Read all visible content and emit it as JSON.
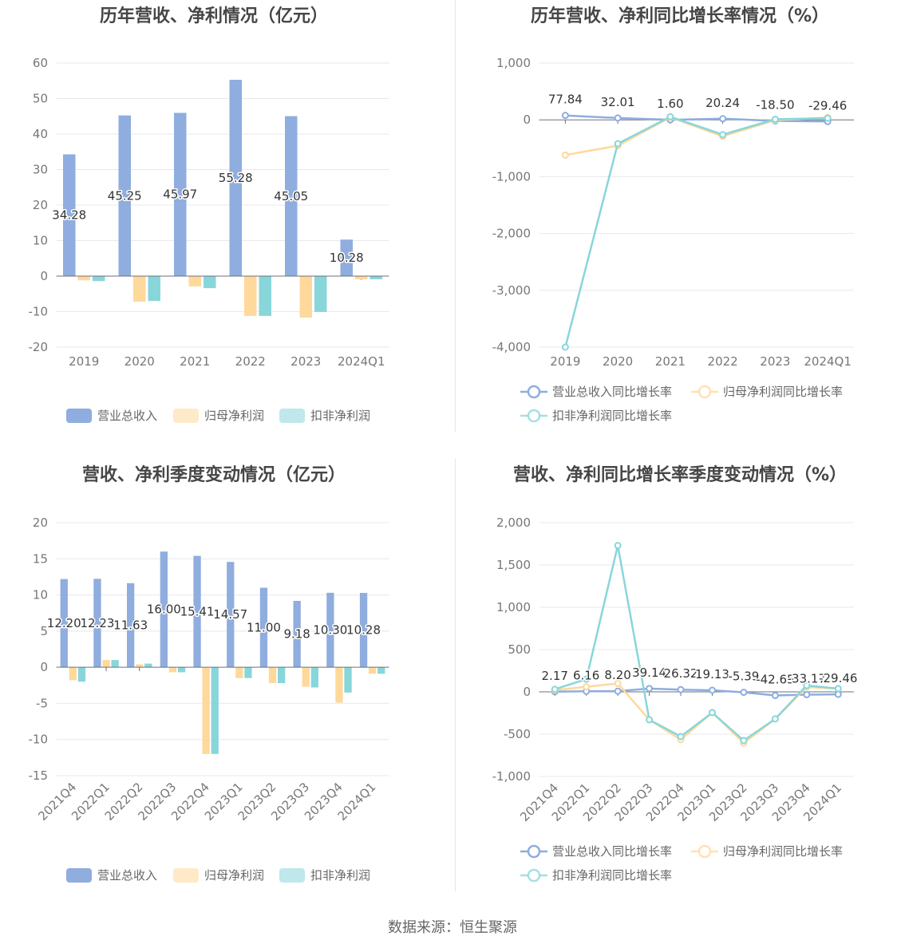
{
  "colors": {
    "revenue": "#8fadde",
    "net_profit": "#ffd89b",
    "deducted_net_profit": "#88d6da"
  },
  "chart_data": [
    {
      "type": "bar",
      "title": "历年营收、净利情况（亿元）",
      "categories": [
        "2019",
        "2020",
        "2021",
        "2022",
        "2023",
        "2024Q1"
      ],
      "ylim": [
        -20,
        60
      ],
      "ytick_labels": [
        "60",
        "50",
        "40",
        "30",
        "20",
        "10",
        "0",
        "-10",
        "-20"
      ],
      "grid": true,
      "legend_position": "bottom",
      "series": [
        {
          "name": "营业总收入",
          "values": [
            34.28,
            45.25,
            45.97,
            55.28,
            45.05,
            10.28
          ],
          "labels": [
            "34.28",
            "45.25",
            "45.97",
            "55.28",
            "45.05",
            "10.28"
          ]
        },
        {
          "name": "归母净利润",
          "values": [
            -1.2,
            -7.2,
            -2.9,
            -11.2,
            -11.7,
            -0.9
          ]
        },
        {
          "name": "扣非净利润",
          "values": [
            -1.4,
            -7.0,
            -3.4,
            -11.2,
            -10.1,
            -0.9
          ]
        }
      ]
    },
    {
      "type": "line",
      "title": "历年营收、净利同比增长率情况（%）",
      "categories": [
        "2019",
        "2020",
        "2021",
        "2022",
        "2023",
        "2024Q1"
      ],
      "ylim": [
        -4000,
        1000
      ],
      "ytick_labels": [
        "1,000",
        "0",
        "-1,000",
        "-2,000",
        "-3,000",
        "-4,000"
      ],
      "grid": true,
      "legend_position": "bottom",
      "series": [
        {
          "name": "营业总收入同比增长率",
          "values": [
            77.84,
            32.01,
            1.6,
            20.24,
            -18.5,
            -29.46
          ],
          "labels": [
            "77.84",
            "32.01",
            "1.60",
            "20.24",
            "-18.50",
            "-29.46"
          ]
        },
        {
          "name": "归母净利润同比增长率",
          "values": [
            -620,
            -455,
            45,
            -290,
            -5,
            40
          ]
        },
        {
          "name": "扣非净利润同比增长率",
          "values": [
            -4000,
            -420,
            55,
            -260,
            10,
            30
          ]
        }
      ]
    },
    {
      "type": "bar",
      "title": "营收、净利季度变动情况（亿元）",
      "categories": [
        "2021Q4",
        "2022Q1",
        "2022Q2",
        "2022Q3",
        "2022Q4",
        "2023Q1",
        "2023Q2",
        "2023Q3",
        "2023Q4",
        "2024Q1"
      ],
      "ylim": [
        -15,
        20
      ],
      "ytick_labels": [
        "20",
        "15",
        "10",
        "5",
        "0",
        "-5",
        "-10",
        "-15"
      ],
      "grid": true,
      "legend_position": "bottom",
      "series": [
        {
          "name": "营业总收入",
          "values": [
            12.2,
            12.23,
            11.63,
            16.0,
            15.41,
            14.57,
            11.0,
            9.18,
            10.3,
            10.28
          ],
          "labels": [
            "12.20",
            "12.23",
            "11.63",
            "16.00",
            "15.41",
            "14.57",
            "11.00",
            "9.18",
            "10.30",
            "10.28"
          ]
        },
        {
          "name": "归母净利润",
          "values": [
            -1.8,
            1.0,
            0.4,
            -0.7,
            -12.0,
            -1.5,
            -2.2,
            -2.7,
            -4.9,
            -0.9
          ]
        },
        {
          "name": "扣非净利润",
          "values": [
            -2.0,
            1.0,
            0.5,
            -0.7,
            -12.0,
            -1.5,
            -2.2,
            -2.8,
            -3.5,
            -0.9
          ]
        }
      ]
    },
    {
      "type": "line",
      "title": "营收、净利同比增长率季度变动情况（%）",
      "categories": [
        "2021Q4",
        "2022Q1",
        "2022Q2",
        "2022Q3",
        "2022Q4",
        "2023Q1",
        "2023Q2",
        "2023Q3",
        "2023Q4",
        "2024Q1"
      ],
      "ylim": [
        -1000,
        2000
      ],
      "ytick_labels": [
        "2,000",
        "1,500",
        "1,000",
        "500",
        "0",
        "-500",
        "-1,000"
      ],
      "grid": true,
      "legend_position": "bottom",
      "series": [
        {
          "name": "营业总收入同比增长率",
          "values": [
            2.17,
            6.16,
            8.2,
            39.14,
            26.32,
            19.13,
            -5.39,
            -42.65,
            -33.17,
            -29.46
          ],
          "labels": [
            "2.17",
            "6.16",
            "8.20",
            "39.14",
            "26.32",
            "19.13",
            "-5.39",
            "-42.65",
            "-33.17",
            "-29.46"
          ]
        },
        {
          "name": "归母净利润同比增长率",
          "values": [
            20,
            60,
            100,
            -330,
            -565,
            -245,
            -605,
            -320,
            57,
            38
          ]
        },
        {
          "name": "扣非净利润同比增长率",
          "values": [
            30,
            150,
            1730,
            -330,
            -528,
            -245,
            -575,
            -320,
            75,
            38
          ]
        }
      ]
    }
  ],
  "footer": {
    "source": "数据来源：恒生聚源"
  }
}
